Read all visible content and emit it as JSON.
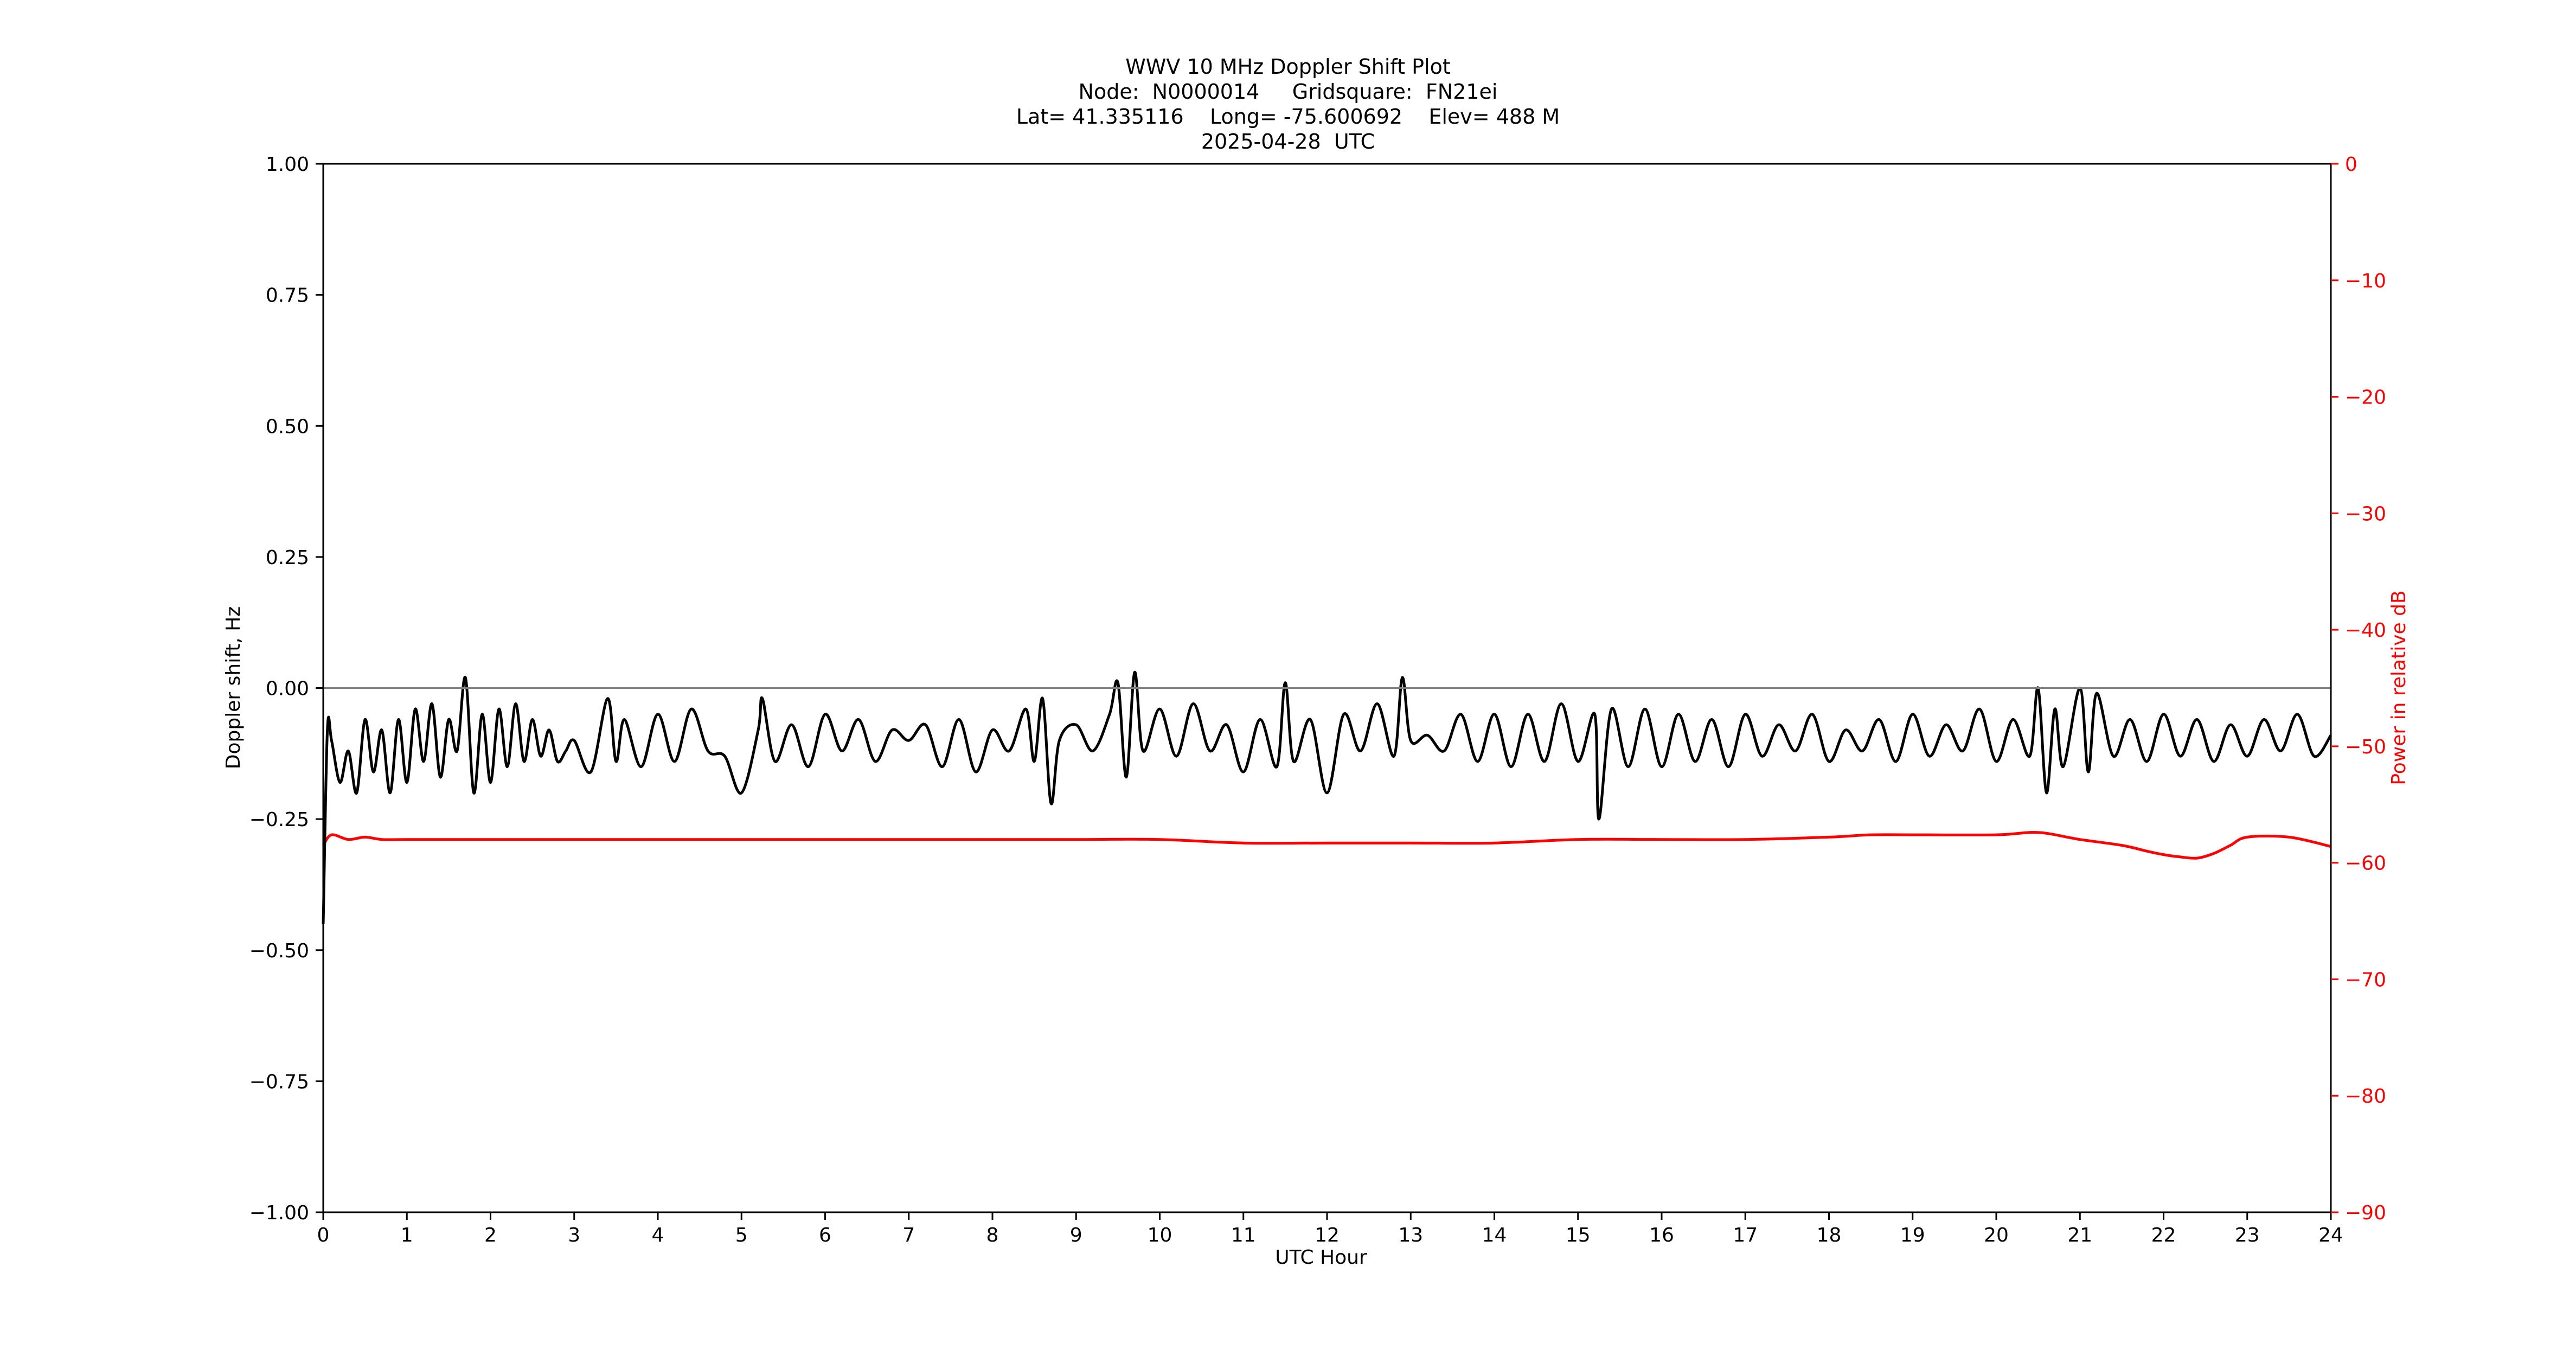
{
  "chart_data": {
    "type": "line",
    "title_lines": [
      "WWV 10 MHz Doppler Shift Plot",
      "Node:  N0000014     Gridsquare:  FN21ei",
      "Lat= 41.335116    Long= -75.600692    Elev= 488 M",
      "2025-04-28  UTC"
    ],
    "xlabel": "UTC Hour",
    "ylabel_left": "Doppler shift, Hz",
    "ylabel_right": "Power in relative dB",
    "xlim": [
      0,
      24
    ],
    "ylim_left": [
      -1.0,
      1.0
    ],
    "ylim_right": [
      -90,
      0
    ],
    "x_ticks": [
      "0",
      "1",
      "2",
      "3",
      "4",
      "5",
      "6",
      "7",
      "8",
      "9",
      "10",
      "11",
      "12",
      "13",
      "14",
      "15",
      "16",
      "17",
      "18",
      "19",
      "20",
      "21",
      "22",
      "23",
      "24"
    ],
    "y_ticks_left": [
      "1.00",
      "0.75",
      "0.50",
      "0.25",
      "0.00",
      "−0.25",
      "−0.50",
      "−0.75",
      "−1.00"
    ],
    "y_ticks_right": [
      "0",
      "−10",
      "−20",
      "−30",
      "−40",
      "−50",
      "−60",
      "−70",
      "−80",
      "−90"
    ],
    "zero_line": 0.0,
    "colors": {
      "doppler": "#000000",
      "power": "#ff0000",
      "zero_line": "#808080",
      "right_axis": "#ff0000"
    },
    "series": [
      {
        "axis": "left",
        "x": [
          0,
          0.05,
          0.1,
          0.2,
          0.3,
          0.4,
          0.5,
          0.6,
          0.7,
          0.8,
          0.9,
          1.0,
          1.1,
          1.2,
          1.3,
          1.4,
          1.5,
          1.6,
          1.7,
          1.8,
          1.9,
          2.0,
          2.1,
          2.2,
          2.3,
          2.4,
          2.5,
          2.6,
          2.7,
          2.8,
          2.9,
          3.0,
          3.2,
          3.4,
          3.5,
          3.6,
          3.8,
          4.0,
          4.2,
          4.4,
          4.6,
          4.8,
          5.0,
          5.2,
          5.25,
          5.4,
          5.6,
          5.8,
          6.0,
          6.2,
          6.4,
          6.6,
          6.8,
          7.0,
          7.2,
          7.4,
          7.6,
          7.8,
          8.0,
          8.2,
          8.4,
          8.5,
          8.6,
          8.7,
          8.8,
          9.0,
          9.2,
          9.4,
          9.5,
          9.6,
          9.7,
          9.8,
          10.0,
          10.2,
          10.4,
          10.6,
          10.8,
          11.0,
          11.2,
          11.4,
          11.5,
          11.6,
          11.8,
          12.0,
          12.2,
          12.4,
          12.6,
          12.8,
          12.9,
          13.0,
          13.2,
          13.4,
          13.6,
          13.8,
          14.0,
          14.2,
          14.4,
          14.6,
          14.8,
          15.0,
          15.2,
          15.25,
          15.4,
          15.6,
          15.8,
          16.0,
          16.2,
          16.4,
          16.6,
          16.8,
          17.0,
          17.2,
          17.4,
          17.6,
          17.8,
          18.0,
          18.2,
          18.4,
          18.6,
          18.8,
          19.0,
          19.2,
          19.4,
          19.6,
          19.8,
          20.0,
          20.2,
          20.4,
          20.5,
          20.6,
          20.7,
          20.8,
          21.0,
          21.1,
          21.2,
          21.4,
          21.6,
          21.8,
          22.0,
          22.2,
          22.4,
          22.6,
          22.8,
          23.0,
          23.2,
          23.4,
          23.6,
          23.8,
          24.0
        ],
        "y": [
          -0.45,
          -0.08,
          -0.1,
          -0.18,
          -0.12,
          -0.2,
          -0.06,
          -0.16,
          -0.08,
          -0.2,
          -0.06,
          -0.18,
          -0.04,
          -0.14,
          -0.03,
          -0.17,
          -0.06,
          -0.12,
          0.02,
          -0.2,
          -0.05,
          -0.18,
          -0.04,
          -0.15,
          -0.03,
          -0.14,
          -0.06,
          -0.13,
          -0.08,
          -0.14,
          -0.12,
          -0.1,
          -0.16,
          -0.02,
          -0.14,
          -0.06,
          -0.15,
          -0.05,
          -0.14,
          -0.04,
          -0.12,
          -0.13,
          -0.2,
          -0.08,
          -0.02,
          -0.14,
          -0.07,
          -0.15,
          -0.05,
          -0.12,
          -0.06,
          -0.14,
          -0.08,
          -0.1,
          -0.07,
          -0.15,
          -0.06,
          -0.16,
          -0.08,
          -0.12,
          -0.04,
          -0.14,
          -0.02,
          -0.22,
          -0.1,
          -0.07,
          -0.12,
          -0.05,
          0.01,
          -0.17,
          0.03,
          -0.12,
          -0.04,
          -0.13,
          -0.03,
          -0.12,
          -0.07,
          -0.16,
          -0.06,
          -0.15,
          0.01,
          -0.14,
          -0.06,
          -0.2,
          -0.05,
          -0.12,
          -0.03,
          -0.13,
          0.02,
          -0.1,
          -0.09,
          -0.12,
          -0.05,
          -0.14,
          -0.05,
          -0.15,
          -0.05,
          -0.14,
          -0.03,
          -0.14,
          -0.05,
          -0.25,
          -0.04,
          -0.15,
          -0.04,
          -0.15,
          -0.05,
          -0.14,
          -0.06,
          -0.15,
          -0.05,
          -0.13,
          -0.07,
          -0.12,
          -0.05,
          -0.14,
          -0.08,
          -0.12,
          -0.06,
          -0.14,
          -0.05,
          -0.13,
          -0.07,
          -0.12,
          -0.04,
          -0.14,
          -0.06,
          -0.13,
          0.0,
          -0.2,
          -0.04,
          -0.15,
          0.0,
          -0.16,
          -0.01,
          -0.13,
          -0.06,
          -0.14,
          -0.05,
          -0.13,
          -0.06,
          -0.14,
          -0.07,
          -0.13,
          -0.06,
          -0.12,
          -0.05,
          -0.13,
          -0.09
        ]
      },
      {
        "axis": "right",
        "x": [
          0,
          0.1,
          0.3,
          0.5,
          0.7,
          1.0,
          1.5,
          2.0,
          2.5,
          3.0,
          3.5,
          4.0,
          5.0,
          6.0,
          7.0,
          8.0,
          9.0,
          10.0,
          11.0,
          12.0,
          13.0,
          14.0,
          15.0,
          16.0,
          17.0,
          18.0,
          18.5,
          19.0,
          20.0,
          20.5,
          21.0,
          21.5,
          21.8,
          22.0,
          22.2,
          22.4,
          22.6,
          22.8,
          23.0,
          23.5,
          24.0
        ],
        "y": [
          -58.5,
          -57.6,
          -58.0,
          -57.8,
          -58.0,
          -58.0,
          -58.0,
          -58.0,
          -58.0,
          -58.0,
          -58.0,
          -58.0,
          -58.0,
          -58.0,
          -58.0,
          -58.0,
          -58.0,
          -58.0,
          -58.3,
          -58.3,
          -58.3,
          -58.3,
          -58.0,
          -58.0,
          -58.0,
          -57.8,
          -57.6,
          -57.6,
          -57.6,
          -57.4,
          -58.0,
          -58.5,
          -59.0,
          -59.3,
          -59.5,
          -59.6,
          -59.2,
          -58.5,
          -57.8,
          -57.8,
          -58.6
        ]
      }
    ]
  }
}
